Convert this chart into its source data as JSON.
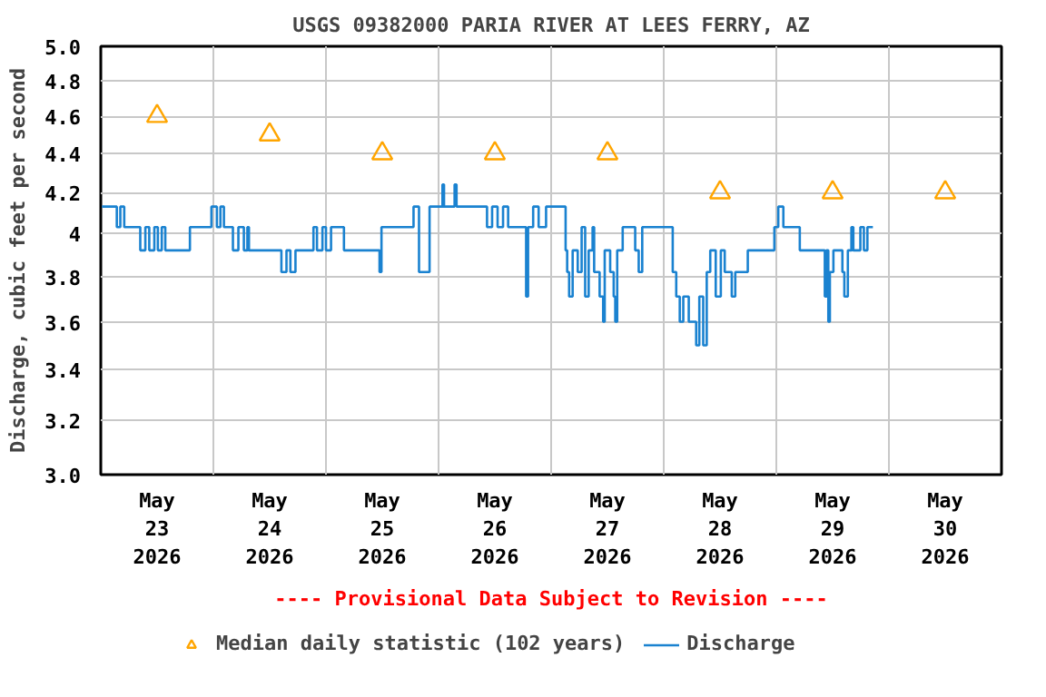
{
  "chart_data": {
    "type": "step",
    "title": "USGS 09382000 PARIA RIVER AT LEES FERRY, AZ",
    "ylabel": "Discharge, cubic feet per second",
    "annotations": [
      "---- Provisional Data Subject to Revision ----"
    ],
    "log": "y",
    "grid": true,
    "legend": "bottom",
    "xlim": [
      "2026-05-23T00:00",
      "2026-05-31T00:00"
    ],
    "xticks": [
      {
        "value": "2026-05-23T12:00",
        "label": "May\n23\n2026"
      },
      {
        "value": "2026-05-24T12:00",
        "label": "May\n24\n2026"
      },
      {
        "value": "2026-05-25T12:00",
        "label": "May\n25\n2026"
      },
      {
        "value": "2026-05-26T12:00",
        "label": "May\n26\n2026"
      },
      {
        "value": "2026-05-27T12:00",
        "label": "May\n27\n2026"
      },
      {
        "value": "2026-05-28T12:00",
        "label": "May\n28\n2026"
      },
      {
        "value": "2026-05-29T12:00",
        "label": "May\n29\n2026"
      },
      {
        "value": "2026-05-30T12:00",
        "label": "May\n30\n2026"
      },
      {
        "value": "2026-05-24T00:00",
        "label": null
      },
      {
        "value": "2026-05-25T00:00",
        "label": null
      },
      {
        "value": "2026-05-26T00:00",
        "label": null
      },
      {
        "value": "2026-05-27T00:00",
        "label": null
      },
      {
        "value": "2026-05-28T00:00",
        "label": null
      },
      {
        "value": "2026-05-29T00:00",
        "label": null
      },
      {
        "value": "2026-05-30T00:00",
        "label": null
      }
    ],
    "ylim": [
      3.0,
      5.0
    ],
    "yticks": [
      {
        "value": 3.0,
        "label": "3.0"
      },
      3.2,
      3.4,
      3.6,
      3.8,
      4,
      4.2,
      4.4,
      4.6,
      4.8,
      {
        "value": 5.0,
        "label": "5.0"
      }
    ],
    "series": [
      {
        "name": "Median daily statistic (102 years)",
        "type": "scatter",
        "marker": "triangle",
        "color": "#ffa500",
        "x": [
          "2026-05-23T12:00",
          "2026-05-24T12:00",
          "2026-05-25T12:00",
          "2026-05-26T12:00",
          "2026-05-27T12:00",
          "2026-05-28T12:00",
          "2026-05-29T12:00",
          "2026-05-30T12:00"
        ],
        "values": [
          4.6,
          4.5,
          4.4,
          4.4,
          4.4,
          4.2,
          4.2,
          4.2
        ]
      },
      {
        "name": "Discharge",
        "color": "#1a82d0",
        "x": [
          "2026-05-23T00:15",
          "2026-05-23T03:25",
          "2026-05-23T04:10",
          "2026-05-23T05:00",
          "2026-05-23T08:25",
          "2026-05-23T09:30",
          "2026-05-23T10:20",
          "2026-05-23T11:25",
          "2026-05-23T12:10",
          "2026-05-23T13:00",
          "2026-05-23T13:45",
          "2026-05-23T19:00",
          "2026-05-23T23:35",
          "2026-05-24T00:45",
          "2026-05-24T01:30",
          "2026-05-24T02:15",
          "2026-05-24T04:10",
          "2026-05-24T05:20",
          "2026-05-24T06:30",
          "2026-05-24T07:15",
          "2026-05-24T07:35",
          "2026-05-24T14:30",
          "2026-05-24T15:35",
          "2026-05-24T16:25",
          "2026-05-24T17:30",
          "2026-05-24T21:20",
          "2026-05-24T22:05",
          "2026-05-24T23:15",
          "2026-05-25T00:00",
          "2026-05-25T01:05",
          "2026-05-25T03:50",
          "2026-05-25T11:25",
          "2026-05-25T11:50",
          "2026-05-25T18:40",
          "2026-05-25T19:50",
          "2026-05-25T22:05",
          "2026-05-26T00:50",
          "2026-05-26T01:10",
          "2026-05-26T03:25",
          "2026-05-26T03:50",
          "2026-05-26T10:20",
          "2026-05-26T11:25",
          "2026-05-26T12:35",
          "2026-05-26T13:45",
          "2026-05-26T14:50",
          "2026-05-26T18:40",
          "2026-05-26T19:05",
          "2026-05-26T20:10",
          "2026-05-26T21:20",
          "2026-05-26T22:55",
          "2026-05-27T03:05",
          "2026-05-27T03:25",
          "2026-05-27T03:50",
          "2026-05-27T04:35",
          "2026-05-27T05:40",
          "2026-05-27T06:30",
          "2026-05-27T07:15",
          "2026-05-27T08:00",
          "2026-05-27T08:50",
          "2026-05-27T09:10",
          "2026-05-27T10:20",
          "2026-05-27T11:05",
          "2026-05-27T11:25",
          "2026-05-27T12:35",
          "2026-05-27T13:20",
          "2026-05-27T13:40",
          "2026-05-27T14:05",
          "2026-05-27T15:15",
          "2026-05-27T17:55",
          "2026-05-27T18:40",
          "2026-05-27T19:25",
          "2026-05-28T01:55",
          "2026-05-28T02:40",
          "2026-05-28T03:25",
          "2026-05-28T04:10",
          "2026-05-28T05:20",
          "2026-05-28T06:55",
          "2026-05-28T07:35",
          "2026-05-28T08:25",
          "2026-05-28T09:10",
          "2026-05-28T09:55",
          "2026-05-28T11:05",
          "2026-05-28T12:10",
          "2026-05-28T13:00",
          "2026-05-28T14:30",
          "2026-05-28T15:15",
          "2026-05-28T17:55",
          "2026-05-28T23:35",
          "2026-05-29T00:25",
          "2026-05-29T01:30",
          "2026-05-29T05:00",
          "2026-05-29T10:20",
          "2026-05-29T10:40",
          "2026-05-29T11:05",
          "2026-05-29T11:25",
          "2026-05-29T12:10",
          "2026-05-29T14:05",
          "2026-05-29T14:30",
          "2026-05-29T15:15",
          "2026-05-29T16:00",
          "2026-05-29T16:25",
          "2026-05-29T17:55",
          "2026-05-29T18:40",
          "2026-05-29T19:25",
          "2026-05-29T20:35"
        ],
        "values": [
          4.13,
          4.03,
          4.13,
          4.03,
          3.92,
          4.03,
          3.92,
          4.03,
          3.92,
          4.03,
          3.92,
          4.03,
          4.13,
          4.03,
          4.13,
          4.03,
          3.92,
          4.03,
          3.92,
          4.03,
          3.92,
          3.82,
          3.92,
          3.82,
          3.92,
          4.03,
          3.92,
          4.03,
          3.92,
          4.03,
          3.92,
          3.82,
          4.03,
          4.13,
          3.82,
          4.13,
          4.24,
          4.13,
          4.24,
          4.13,
          4.03,
          4.13,
          4.03,
          4.13,
          4.03,
          3.71,
          4.03,
          4.13,
          4.03,
          4.13,
          3.92,
          3.82,
          3.71,
          3.92,
          3.82,
          4.03,
          3.71,
          3.92,
          4.03,
          3.82,
          3.71,
          3.6,
          3.92,
          3.82,
          3.71,
          3.6,
          3.92,
          4.03,
          3.92,
          3.82,
          4.03,
          3.82,
          3.71,
          3.6,
          3.71,
          3.6,
          3.5,
          3.71,
          3.5,
          3.82,
          3.92,
          3.71,
          3.92,
          3.82,
          3.71,
          3.82,
          3.92,
          4.03,
          4.13,
          4.03,
          3.92,
          3.71,
          3.92,
          3.6,
          3.82,
          3.92,
          3.82,
          3.71,
          3.92,
          4.03,
          3.92,
          4.03,
          3.92,
          4.03,
          4.03
        ]
      }
    ]
  }
}
